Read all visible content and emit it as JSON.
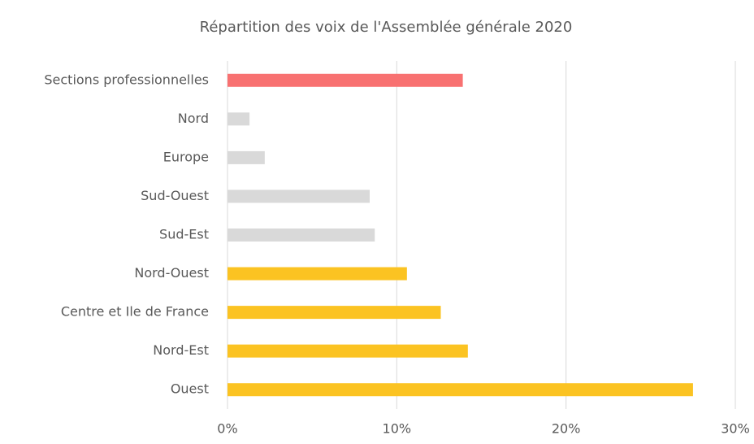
{
  "chart_data": {
    "type": "hbar",
    "title": "Répartition des voix de l'Assemblée générale 2020",
    "categories": [
      "Sections professionnelles",
      "Nord",
      "Europe",
      "Sud-Ouest",
      "Sud-Est",
      "Nord-Ouest",
      "Centre et Ile de France",
      "Nord-Est",
      "Ouest"
    ],
    "values": [
      13.9,
      1.3,
      2.2,
      8.4,
      8.7,
      10.6,
      12.6,
      14.2,
      27.5
    ],
    "colors": [
      "#f87171",
      "#d9d9d9",
      "#d9d9d9",
      "#d9d9d9",
      "#d9d9d9",
      "#fbc322",
      "#fbc322",
      "#fbc322",
      "#fbc322"
    ],
    "xlim": [
      0,
      30
    ],
    "xticks": [
      {
        "value": 0,
        "label": "0%"
      },
      {
        "value": 10,
        "label": "10%"
      },
      {
        "value": 20,
        "label": "20%"
      },
      {
        "value": 30,
        "label": "30%"
      }
    ],
    "grid": true
  }
}
